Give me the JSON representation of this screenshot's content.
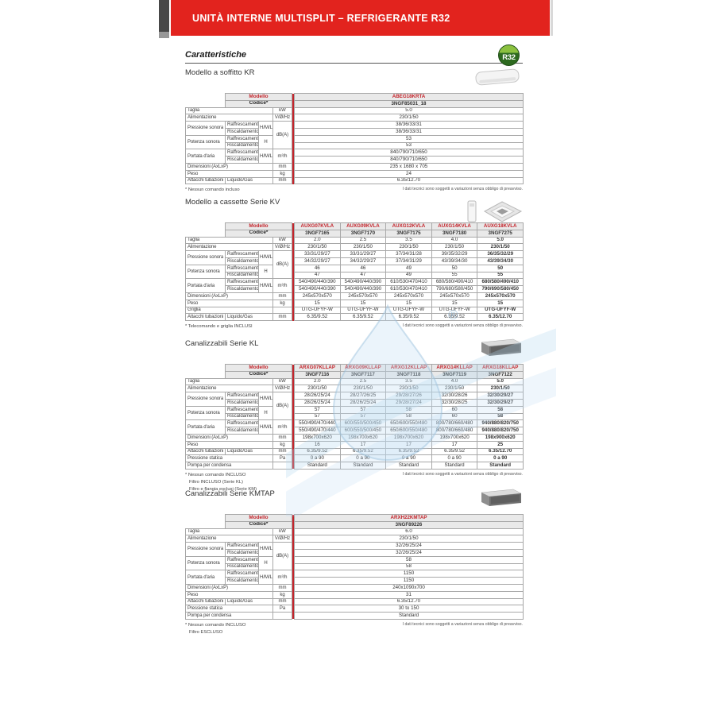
{
  "banner": {
    "title": "UNITÀ INTERNE MULTISPLIT – REFRIGERANTE R32"
  },
  "page_heading": "Caratteristiche",
  "badge": {
    "label": "R32"
  },
  "disclaimer": "I dati tecnici sono soggetti a variazioni senza obbligo di preavviso.",
  "header_labels": {
    "modello": "Modello",
    "codice": "Codice*"
  },
  "tables": [
    {
      "heading": "Modello a soffitto KR",
      "image": "ceiling-unit-image",
      "bold_last": false,
      "models": [
        "ABEG18KRTA"
      ],
      "codes": [
        "3NGF85031_18"
      ],
      "sections": [
        {
          "t": "simple",
          "label": "Taglia",
          "unit": "kW",
          "values": [
            "5.0"
          ]
        },
        {
          "t": "simple",
          "label": "Alimentazione",
          "unit": "V/Ø/Hz",
          "values": [
            "230/1/50"
          ]
        },
        {
          "t": "pair",
          "label": "Pressione sonora",
          "subs": [
            "Raffrescamento",
            "Riscaldamento"
          ],
          "mode": "H/M/L/Q",
          "unit": "dB(A)",
          "unitSpan": 4,
          "rows": [
            [
              "38/36/33/31"
            ],
            [
              "38/36/33/31"
            ]
          ]
        },
        {
          "t": "pair",
          "label": "Potenza sonora",
          "subs": [
            "Raffrescamento",
            "Riscaldamento"
          ],
          "mode": "H",
          "rows": [
            [
              "53"
            ],
            [
              "53"
            ]
          ]
        },
        {
          "t": "pair",
          "label": "Portata d'aria",
          "subs": [
            "Raffrescamento",
            "Riscaldamento"
          ],
          "mode": "H/M/L/Q",
          "unit": "m³/h",
          "unitSpan": 2,
          "rows": [
            [
              "840/790/710/650"
            ],
            [
              "840/790/710/650"
            ]
          ]
        },
        {
          "t": "simple",
          "label": "Dimensioni (AxLxP)",
          "unit": "mm",
          "values": [
            "235 x 1680 x 705"
          ]
        },
        {
          "t": "simple",
          "label": "Peso",
          "unit": "kg",
          "values": [
            "24"
          ]
        },
        {
          "t": "split",
          "label": "Attacchi tubazioni",
          "sub": "Liquido/Gas",
          "unit": "mm",
          "values": [
            "6.35/12.70"
          ]
        }
      ],
      "notes": [
        "* Nessun comando incluso"
      ]
    },
    {
      "heading": "Modello a cassette Serie KV",
      "image": "cassette-with-remote-image",
      "bold_last": true,
      "models": [
        "AUXG07KVLA",
        "AUXG09KVLA",
        "AUXG12KVLA",
        "AUXG14KVLA",
        "AUXG18KVLA"
      ],
      "codes": [
        "3NGF7165",
        "3NGF7170",
        "3NGF7175",
        "3NGF7180",
        "3NGF7275"
      ],
      "sections": [
        {
          "t": "simple",
          "label": "Taglia",
          "unit": "kW",
          "values": [
            "2.0",
            "2.5",
            "3.5",
            "4.0",
            "5.0"
          ]
        },
        {
          "t": "simple",
          "label": "Alimentazione",
          "unit": "V/Ø/Hz",
          "values": [
            "230/1/50",
            "230/1/50",
            "230/1/50",
            "230/1/50",
            "230/1/50"
          ]
        },
        {
          "t": "pair",
          "label": "Pressione sonora",
          "subs": [
            "Raffrescamento",
            "Riscaldamento"
          ],
          "mode": "H/M/L/Q",
          "unit": "dB(A)",
          "unitSpan": 4,
          "rows": [
            [
              "33/31/29/27",
              "33/31/29/27",
              "37/34/31/28",
              "39/35/32/29",
              "36/35/32/29"
            ],
            [
              "34/32/29/27",
              "34/32/29/27",
              "37/34/31/29",
              "43/39/34/30",
              "43/39/34/30"
            ]
          ]
        },
        {
          "t": "pair",
          "label": "Potenza sonora",
          "subs": [
            "Raffrescamento",
            "Riscaldamento"
          ],
          "mode": "H",
          "rows": [
            [
              "46",
              "46",
              "49",
              "50",
              "50"
            ],
            [
              "47",
              "47",
              "49",
              "55",
              "55"
            ]
          ]
        },
        {
          "t": "pair",
          "label": "Portata d'aria",
          "subs": [
            "Raffrescamento",
            "Riscaldamento"
          ],
          "mode": "H/M/L/Q",
          "unit": "m³/h",
          "unitSpan": 2,
          "rows": [
            [
              "540/490/440/390",
              "540/490/440/390",
              "610/530/470/410",
              "680/580/490/410",
              "680/580/490/410"
            ],
            [
              "540/490/440/390",
              "540/490/440/390",
              "610/530/470/410",
              "790/680/580/450",
              "790/690/580/450"
            ]
          ]
        },
        {
          "t": "simple",
          "label": "Dimensioni (AxLxP)",
          "unit": "mm",
          "values": [
            "245x570x570",
            "245x570x570",
            "245x570x570",
            "245x570x570",
            "245x570x570"
          ]
        },
        {
          "t": "simple",
          "label": "Peso",
          "unit": "kg",
          "values": [
            "15",
            "15",
            "15",
            "15",
            "15"
          ]
        },
        {
          "t": "simple",
          "label": "Griglia",
          "unit": "",
          "values": [
            "UTG-UFYF-W",
            "UTG-UFYF-W",
            "UTG-UFYF-W",
            "UTG-UFYF-W",
            "UTG-UFYF-W"
          ]
        },
        {
          "t": "split",
          "label": "Attacchi tubazioni",
          "sub": "Liquido/Gas",
          "unit": "mm",
          "values": [
            "6.35/9.52",
            "6.35/9.52",
            "6.35/9.52",
            "6.35/9.52",
            "6.35/12.70"
          ]
        }
      ],
      "notes": [
        "* Telecomando e griglia INCLUSI"
      ]
    },
    {
      "heading": "Canalizzabili Serie KL",
      "image": "duct-unit-image",
      "bold_last": true,
      "models": [
        "ARXG07KLLAP",
        "ARXG09KLLAP",
        "ARXG12KLLAP",
        "ARXG14KLLAP",
        "ARXG18KLLAP"
      ],
      "codes": [
        "3NGF7116",
        "3NGF7117",
        "3NGF7118",
        "3NGF7119",
        "3NGF7122"
      ],
      "sections": [
        {
          "t": "simple",
          "label": "Taglia",
          "unit": "kW",
          "values": [
            "2.0",
            "2.5",
            "3.5",
            "4.0",
            "5.0"
          ]
        },
        {
          "t": "simple",
          "label": "Alimentazione",
          "unit": "V/Ø/Hz",
          "values": [
            "230/1/50",
            "230/1/50",
            "230/1/50",
            "230/1/50",
            "230/1/50"
          ]
        },
        {
          "t": "pair",
          "label": "Pressione sonora",
          "subs": [
            "Raffrescamento",
            "Riscaldamento"
          ],
          "mode": "H/M/L/Q",
          "unit": "dB(A)",
          "unitSpan": 4,
          "rows": [
            [
              "28/26/25/24",
              "28/27/26/25",
              "29/28/27/26",
              "32/30/28/26",
              "32/30/29/27"
            ],
            [
              "28/26/25/24",
              "28/26/25/24",
              "29/28/27/24",
              "32/30/28/25",
              "32/30/29/27"
            ]
          ]
        },
        {
          "t": "pair",
          "label": "Potenza sonora",
          "subs": [
            "Raffrescamento",
            "Riscaldamento"
          ],
          "mode": "H",
          "rows": [
            [
              "57",
              "57",
              "58",
              "60",
              "58"
            ],
            [
              "57",
              "57",
              "58",
              "60",
              "58"
            ]
          ]
        },
        {
          "t": "pair",
          "label": "Portata d'aria",
          "subs": [
            "Raffrescamento",
            "Riscaldamento"
          ],
          "mode": "H/M/L/Q",
          "unit": "m³/h",
          "unitSpan": 2,
          "rows": [
            [
              "550/490/470/440",
              "600/550/500/450",
              "650/600/550/480",
              "800/780/660/480",
              "940/880/820/750"
            ],
            [
              "550/490/470/440",
              "600/550/500/450",
              "650/600/550/480",
              "800/780/660/480",
              "940/880/820/750"
            ]
          ]
        },
        {
          "t": "simple",
          "label": "Dimensioni (AxLxP)",
          "unit": "mm",
          "values": [
            "198x700x620",
            "198x700x620",
            "198x700x620",
            "198x700x620",
            "198x900x620"
          ]
        },
        {
          "t": "simple",
          "label": "Peso",
          "unit": "kg",
          "values": [
            "16",
            "17",
            "17",
            "17",
            "25"
          ]
        },
        {
          "t": "split",
          "label": "Attacchi tubazioni",
          "sub": "Liquido/Gas",
          "unit": "mm",
          "values": [
            "6.35/9.52",
            "6.35/9.52",
            "6.35/9.52",
            "6.35/9.52",
            "6.35/12.70"
          ]
        },
        {
          "t": "simple",
          "label": "Pressione statica",
          "unit": "Pa",
          "values": [
            "0 a 90",
            "0 a 90",
            "0 a 90",
            "0 a 90",
            "0 a 90"
          ]
        },
        {
          "t": "simple",
          "label": "Pompa per condensa",
          "unit": "",
          "values": [
            "Standard",
            "Standard",
            "Standard",
            "Standard",
            "Standard"
          ]
        }
      ],
      "notes": [
        "* Nessun comando INCLUSO",
        "Filtro INCLUSO (Serie KL)",
        "Filtro e flangia esclusi (Serie KM)"
      ]
    },
    {
      "heading": "Canalizzabili Serie KMTAP",
      "image": "duct-unit-image",
      "bold_last": false,
      "models": [
        "ARXH22KMTAP"
      ],
      "codes": [
        "3NGF89226"
      ],
      "sections": [
        {
          "t": "simple",
          "label": "Taglia",
          "unit": "kW",
          "values": [
            "6.0"
          ]
        },
        {
          "t": "simple",
          "label": "Alimentazione",
          "unit": "V/Ø/Hz",
          "values": [
            "230/1/50"
          ]
        },
        {
          "t": "pair",
          "label": "Pressione sonora",
          "subs": [
            "Raffrescamento",
            "Riscaldamento"
          ],
          "mode": "H/M/L/Q",
          "unit": "dB(A)",
          "unitSpan": 4,
          "rows": [
            [
              "32/26/25/24"
            ],
            [
              "32/26/25/24"
            ]
          ]
        },
        {
          "t": "pair",
          "label": "Potenza sonora",
          "subs": [
            "Raffrescamento",
            "Riscaldamento"
          ],
          "mode": "H",
          "rows": [
            [
              "58"
            ],
            [
              "58"
            ]
          ]
        },
        {
          "t": "pair",
          "label": "Portata d'aria",
          "subs": [
            "Raffrescamento",
            "Riscaldamento"
          ],
          "mode": "H/M/L/Q",
          "unit": "m³/h",
          "unitSpan": 2,
          "rows": [
            [
              "1150"
            ],
            [
              "1150"
            ]
          ]
        },
        {
          "t": "simple",
          "label": "Dimensioni (AxLxP)",
          "unit": "mm",
          "values": [
            "240x1090x700"
          ]
        },
        {
          "t": "simple",
          "label": "Peso",
          "unit": "kg",
          "values": [
            "31"
          ]
        },
        {
          "t": "split",
          "label": "Attacchi tubazioni",
          "sub": "Liquido/Gas",
          "unit": "mm",
          "values": [
            "6.35/12.70"
          ]
        },
        {
          "t": "simple",
          "label": "Pressione statica",
          "unit": "Pa",
          "values": [
            "30 to 150"
          ]
        },
        {
          "t": "simple",
          "label": "Pompa per condensa",
          "unit": "",
          "values": [
            "Standard"
          ]
        }
      ],
      "notes": [
        "* Nessun comando INCLUSO",
        "Filtro ESCLUSO"
      ]
    }
  ]
}
